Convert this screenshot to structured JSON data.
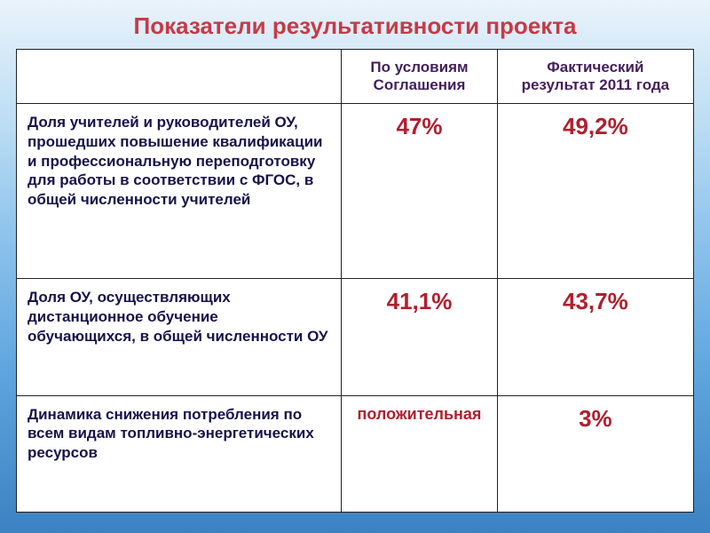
{
  "colors": {
    "title": "#c63a45",
    "header_text": "#441f5c",
    "indicator_text": "#17124b",
    "value_text": "#b01f2e",
    "cell_bg": "#ffffff",
    "border": "#222222",
    "slide_bg_gradient_stops": [
      "#e9f3fb",
      "#bedef4",
      "#8cc2ec",
      "#5ea5de",
      "#3c82c2"
    ]
  },
  "layout": {
    "columns": {
      "indicator_pct": 48,
      "col1_pct": 23,
      "col2_pct": 29
    },
    "title_fontsize": 26,
    "header_fontsize": 17,
    "indicator_fontsize": 17,
    "value_fontsize": 26,
    "value_text_fontsize": 18
  },
  "title": "Показатели результативности проекта",
  "table": {
    "headers": {
      "col1": "По условиям Соглашения",
      "col2": "Фактический результат  2011 года"
    },
    "rows": [
      {
        "indicator": "Доля учителей и руководителей ОУ, прошедших повышение квалификации и профессиональную переподготовку для работы в соответствии с ФГОС, в общей численности учителей",
        "col1": "47%",
        "col2": "49,2%"
      },
      {
        "indicator": "Доля ОУ, осуществляющих дистанционное обучение обучающихся, в общей численности ОУ",
        "col1": "41,1%",
        "col2": "43,7%"
      },
      {
        "indicator": "Динамика снижения потребления по всем видам топливно-энергетических ресурсов",
        "col1": "положительная",
        "col2": "3%"
      }
    ]
  }
}
